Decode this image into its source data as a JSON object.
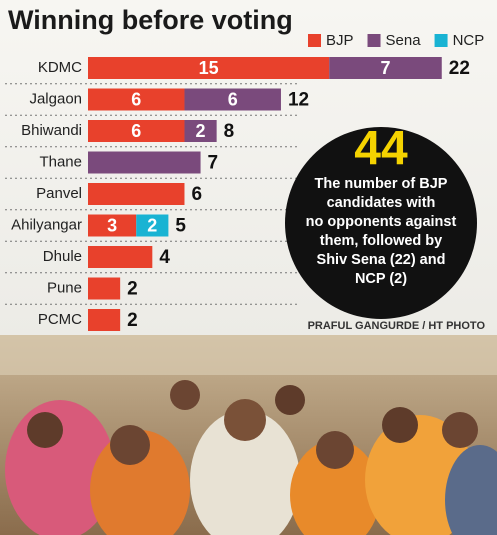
{
  "chart_data": {
    "type": "stacked-bar-horizontal",
    "title": "Winning before voting",
    "categories": [
      "KDMC",
      "Jalgaon",
      "Bhiwandi",
      "Thane",
      "Panvel",
      "Ahilyangar",
      "Dhule",
      "Pune",
      "PCMC"
    ],
    "series": [
      {
        "name": "BJP",
        "color": "#e8412c",
        "values": [
          15,
          6,
          6,
          null,
          6,
          3,
          4,
          2,
          2
        ]
      },
      {
        "name": "Sena",
        "color": "#7a4a7c",
        "values": [
          7,
          6,
          2,
          7,
          null,
          null,
          null,
          null,
          null
        ]
      },
      {
        "name": "NCP",
        "color": "#19b3d3",
        "values": [
          null,
          null,
          null,
          null,
          null,
          2,
          null,
          null,
          null
        ]
      }
    ],
    "totals": [
      22,
      12,
      8,
      7,
      6,
      5,
      4,
      2,
      2
    ],
    "xlim": [
      0,
      25
    ],
    "callout_value": 44,
    "callout_lines": [
      "The number of BJP",
      "candidates with",
      "no opponents against",
      "them, followed by",
      "Shiv Sena (22) and",
      "NCP (2)"
    ],
    "credit": "PRAFUL GANGURDE / HT PHOTO"
  }
}
